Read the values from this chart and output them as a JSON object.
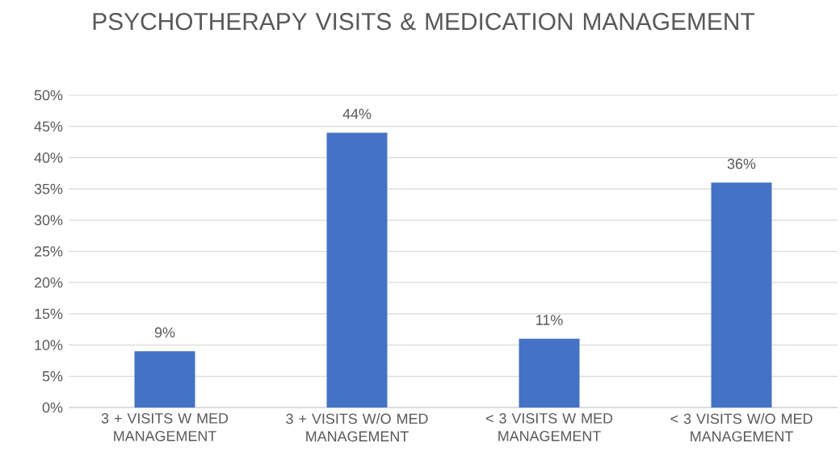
{
  "chart_data": {
    "type": "bar",
    "title": "PSYCHOTHERAPY VISITS & MEDICATION MANAGEMENT",
    "categories": [
      "3 + VISITS W MED MANAGEMENT",
      "3 + VISITS W/O MED MANAGEMENT",
      "< 3 VISITS W MED MANAGEMENT",
      "< 3 VISITS W/O MED MANAGEMENT"
    ],
    "values": [
      9,
      44,
      11,
      36
    ],
    "value_labels": [
      "9%",
      "44%",
      "11%",
      "36%"
    ],
    "color": "#4472c4",
    "ylim": [
      0,
      50
    ],
    "yticks": [
      {
        "value": 0,
        "label": "0%"
      },
      {
        "value": 5,
        "label": "5%"
      },
      {
        "value": 10,
        "label": "10%"
      },
      {
        "value": 15,
        "label": "15%"
      },
      {
        "value": 20,
        "label": "20%"
      },
      {
        "value": 25,
        "label": "25%"
      },
      {
        "value": 30,
        "label": "30%"
      },
      {
        "value": 35,
        "label": "35%"
      },
      {
        "value": 40,
        "label": "40%"
      },
      {
        "value": 45,
        "label": "45%"
      },
      {
        "value": 50,
        "label": "50%"
      }
    ],
    "grid": "y"
  }
}
